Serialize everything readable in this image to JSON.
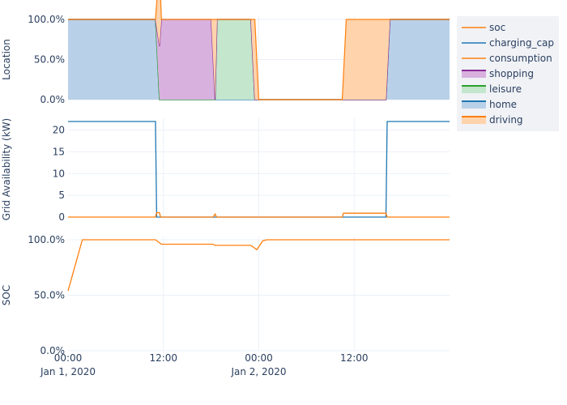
{
  "chart_data": [
    {
      "type": "area",
      "ylabel": "Location",
      "ylim": [
        0,
        1
      ],
      "yticks": [
        0,
        0.5,
        1
      ],
      "ytick_labels": [
        "0.0%",
        "50.0%",
        "100.0%"
      ],
      "stacked": true,
      "series": [
        {
          "name": "home",
          "color": "#1f77b4",
          "points": [
            [
              0,
              1
            ],
            [
              22,
              1
            ],
            [
              23,
              0
            ],
            [
              46,
              0
            ],
            [
              47,
              0
            ],
            [
              69,
              0
            ],
            [
              70,
              0
            ],
            [
              80,
              0
            ],
            [
              81,
              1
            ],
            [
              96,
              1
            ]
          ]
        },
        {
          "name": "leisure",
          "color": "#2ca02c",
          "points": [
            [
              0,
              0
            ],
            [
              22,
              0
            ],
            [
              23,
              0
            ],
            [
              37,
              0
            ],
            [
              37.5,
              1
            ],
            [
              46,
              1
            ],
            [
              47,
              0
            ],
            [
              96,
              0
            ]
          ]
        },
        {
          "name": "shopping",
          "color": "#9467bd",
          "points": [
            [
              0,
              0
            ],
            [
              22,
              0
            ],
            [
              23.5,
              1
            ],
            [
              36,
              1
            ],
            [
              37,
              0
            ],
            [
              96,
              0
            ]
          ]
        },
        {
          "name": "driving",
          "color": "#ff7f0e",
          "points": [
            [
              0,
              0
            ],
            [
              22,
              0
            ],
            [
              23,
              1
            ],
            [
              23.5,
              0
            ],
            [
              36,
              0
            ],
            [
              37,
              1
            ],
            [
              37.5,
              0
            ],
            [
              46,
              0
            ],
            [
              47,
              1
            ],
            [
              48,
              0
            ],
            [
              69,
              0
            ],
            [
              70,
              1
            ],
            [
              80,
              1
            ],
            [
              81,
              0
            ],
            [
              96,
              0
            ]
          ]
        }
      ]
    },
    {
      "type": "line",
      "ylabel": "Grid Availability (kW)",
      "ylim": [
        0,
        22
      ],
      "yticks": [
        0,
        5,
        10,
        15,
        20
      ],
      "series": [
        {
          "name": "charging_cap",
          "color": "#1f77b4",
          "points": [
            [
              0,
              22
            ],
            [
              22,
              22
            ],
            [
              22.3,
              0
            ],
            [
              46,
              0
            ],
            [
              46.3,
              0
            ],
            [
              69,
              0
            ],
            [
              69.3,
              0
            ],
            [
              80,
              0
            ],
            [
              80.3,
              22
            ],
            [
              96,
              22
            ]
          ]
        },
        {
          "name": "consumption",
          "color": "#ff7f0e",
          "points": [
            [
              0,
              0
            ],
            [
              22,
              0
            ],
            [
              22.3,
              1
            ],
            [
              23,
              1
            ],
            [
              23.3,
              0
            ],
            [
              36.5,
              0
            ],
            [
              37,
              0.7
            ],
            [
              37.4,
              0
            ],
            [
              69,
              0
            ],
            [
              69.3,
              0.9
            ],
            [
              80,
              0.9
            ],
            [
              80.3,
              0
            ],
            [
              96,
              0
            ]
          ]
        }
      ]
    },
    {
      "type": "line",
      "ylabel": "SOC",
      "ylim": [
        0,
        1
      ],
      "yticks": [
        0,
        0.5,
        1
      ],
      "ytick_labels": [
        "0.0%",
        "50.0%",
        "100.0%"
      ],
      "series": [
        {
          "name": "soc",
          "color": "#ff7f0e",
          "points": [
            [
              0,
              0.54
            ],
            [
              3.6,
              1
            ],
            [
              22,
              1
            ],
            [
              23.5,
              0.96
            ],
            [
              36.5,
              0.96
            ],
            [
              37,
              0.95
            ],
            [
              46,
              0.95
            ],
            [
              47.5,
              0.91
            ],
            [
              49,
              0.99
            ],
            [
              50,
              1
            ],
            [
              96,
              1
            ]
          ]
        }
      ]
    }
  ],
  "x_axis": {
    "range_hours": [
      0,
      96
    ],
    "ticks": [
      {
        "hour": 0,
        "label": "00:00",
        "sublabel": "Jan 1, 2020"
      },
      {
        "hour": 24,
        "label": "12:00",
        "sublabel": ""
      },
      {
        "hour": 48,
        "label": "00:00",
        "sublabel": "Jan 2, 2020"
      },
      {
        "hour": 72,
        "label": "12:00",
        "sublabel": ""
      }
    ]
  },
  "legend": {
    "placement": "top-right",
    "items": [
      {
        "name": "soc",
        "color": "#ff7f0e",
        "style": "line"
      },
      {
        "name": "charging_cap",
        "color": "#1f77b4",
        "style": "line"
      },
      {
        "name": "consumption",
        "color": "#ff7f0e",
        "style": "line"
      },
      {
        "name": "shopping",
        "color": "#8b2d96",
        "fill": "#d8b1df",
        "style": "area"
      },
      {
        "name": "leisure",
        "color": "#2ca02c",
        "fill": "#c3e6cd",
        "style": "area"
      },
      {
        "name": "home",
        "color": "#1f77b4",
        "fill": "#b9d1e8",
        "style": "area"
      },
      {
        "name": "driving",
        "color": "#ff7f0e",
        "fill": "#ffd3ab",
        "style": "area"
      }
    ]
  }
}
